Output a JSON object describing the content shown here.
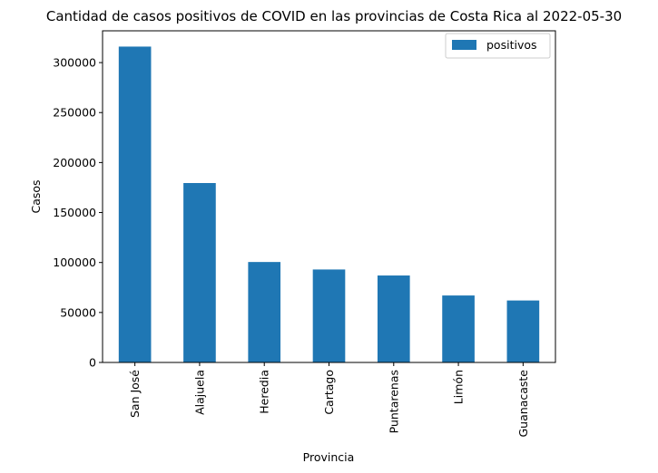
{
  "chart_data": {
    "type": "bar",
    "title": "Cantidad de casos positivos de COVID en las provincias de Costa Rica al 2022-05-30",
    "xlabel": "Provincia",
    "ylabel": "Casos",
    "categories": [
      "San José",
      "Alajuela",
      "Heredia",
      "Cartago",
      "Puntarenas",
      "Limón",
      "Guanacaste"
    ],
    "series": [
      {
        "name": "positivos",
        "color": "#1f77b4",
        "values": [
          316000,
          179500,
          100500,
          93000,
          87000,
          67000,
          62000
        ]
      }
    ],
    "ylim": [
      0,
      331800
    ],
    "yticks": [
      0,
      50000,
      100000,
      150000,
      200000,
      250000,
      300000
    ],
    "ytick_labels": [
      "0",
      "50000",
      "100000",
      "150000",
      "200000",
      "250000",
      "300000"
    ],
    "grid": false,
    "legend_position": "top-right",
    "xtick_rotation": "vertical"
  }
}
